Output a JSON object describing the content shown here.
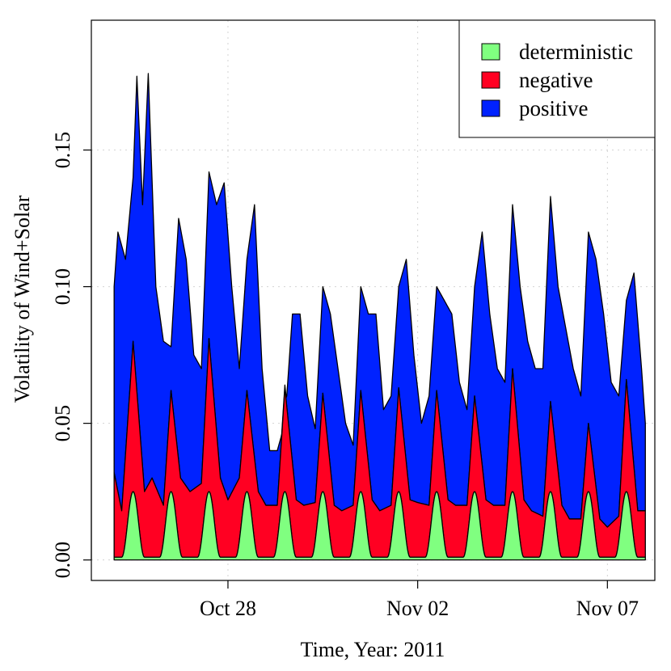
{
  "chart_data": {
    "type": "area",
    "stacked": true,
    "title": "",
    "xlabel": "Time, Year: 2011",
    "ylabel": "Volatility of Wind+Solar",
    "x_unit": "days since Oct 25 2011 00:00",
    "xlim": [
      -0.6,
      14.25
    ],
    "ylim": [
      -0.0075,
      0.1975
    ],
    "x_ticks": [
      {
        "value": 3.0,
        "label": "Oct 28"
      },
      {
        "value": 8.0,
        "label": "Nov 02"
      },
      {
        "value": 13.0,
        "label": "Nov 07"
      }
    ],
    "y_ticks": [
      {
        "value": 0.0,
        "label": "0.00"
      },
      {
        "value": 0.05,
        "label": "0.05"
      },
      {
        "value": 0.1,
        "label": "0.10"
      },
      {
        "value": 0.15,
        "label": "0.15"
      }
    ],
    "grid": true,
    "legend_position": "top-right",
    "series": [
      {
        "name": "deterministic",
        "color": "#80ff80",
        "peak_days": [
          0.5,
          1.5,
          2.5,
          3.5,
          4.5,
          5.5,
          6.5,
          7.5,
          8.5,
          9.5,
          10.5,
          11.5,
          12.5,
          13.5
        ],
        "base": 0.001,
        "peak": 0.025,
        "x": [
          0.0,
          1.0,
          2.0,
          3.0,
          4.0,
          5.0,
          6.0,
          7.0,
          8.0,
          9.0,
          10.0,
          11.0,
          12.0,
          13.0,
          14.0
        ],
        "values": [
          0.001,
          0.001,
          0.001,
          0.001,
          0.001,
          0.001,
          0.001,
          0.001,
          0.001,
          0.001,
          0.001,
          0.001,
          0.001,
          0.001,
          0.001
        ]
      },
      {
        "name": "negative",
        "color": "#ff0022",
        "x": [
          0.0,
          0.2,
          0.5,
          0.8,
          1.0,
          1.3,
          1.5,
          1.75,
          2.0,
          2.3,
          2.5,
          2.8,
          3.0,
          3.3,
          3.5,
          3.8,
          4.0,
          4.3,
          4.5,
          4.8,
          5.0,
          5.3,
          5.5,
          5.8,
          6.0,
          6.3,
          6.5,
          6.8,
          7.0,
          7.3,
          7.5,
          7.8,
          8.0,
          8.3,
          8.5,
          8.8,
          9.0,
          9.3,
          9.5,
          9.8,
          10.0,
          10.3,
          10.5,
          10.8,
          11.0,
          11.3,
          11.5,
          11.8,
          12.0,
          12.3,
          12.5,
          12.8,
          13.0,
          13.3,
          13.5,
          13.8,
          14.0
        ],
        "values": [
          0.032,
          0.018,
          0.08,
          0.025,
          0.03,
          0.02,
          0.062,
          0.03,
          0.025,
          0.028,
          0.081,
          0.03,
          0.022,
          0.03,
          0.062,
          0.025,
          0.02,
          0.02,
          0.063,
          0.022,
          0.02,
          0.021,
          0.061,
          0.02,
          0.018,
          0.02,
          0.062,
          0.022,
          0.018,
          0.02,
          0.063,
          0.022,
          0.021,
          0.02,
          0.062,
          0.022,
          0.02,
          0.02,
          0.06,
          0.022,
          0.02,
          0.02,
          0.07,
          0.022,
          0.018,
          0.016,
          0.058,
          0.02,
          0.015,
          0.015,
          0.05,
          0.015,
          0.012,
          0.016,
          0.066,
          0.018,
          0.018
        ]
      },
      {
        "name": "positive",
        "color": "#0022ff",
        "x": [
          0.0,
          0.1,
          0.3,
          0.5,
          0.6,
          0.75,
          0.9,
          1.1,
          1.3,
          1.5,
          1.7,
          1.9,
          2.1,
          2.3,
          2.5,
          2.7,
          2.9,
          3.1,
          3.3,
          3.5,
          3.7,
          3.9,
          4.1,
          4.3,
          4.5,
          4.7,
          4.9,
          5.1,
          5.3,
          5.5,
          5.7,
          5.9,
          6.1,
          6.3,
          6.5,
          6.7,
          6.9,
          7.1,
          7.3,
          7.5,
          7.7,
          7.9,
          8.1,
          8.3,
          8.5,
          8.7,
          8.9,
          9.1,
          9.3,
          9.5,
          9.7,
          9.9,
          10.1,
          10.3,
          10.5,
          10.7,
          10.9,
          11.1,
          11.3,
          11.5,
          11.7,
          11.9,
          12.1,
          12.3,
          12.5,
          12.7,
          12.9,
          13.1,
          13.3,
          13.5,
          13.7,
          13.9,
          14.0
        ],
        "values": [
          0.1,
          0.12,
          0.11,
          0.14,
          0.177,
          0.13,
          0.178,
          0.1,
          0.08,
          0.078,
          0.125,
          0.11,
          0.075,
          0.07,
          0.142,
          0.13,
          0.138,
          0.1,
          0.07,
          0.11,
          0.13,
          0.07,
          0.04,
          0.04,
          0.05,
          0.09,
          0.09,
          0.06,
          0.048,
          0.1,
          0.09,
          0.07,
          0.05,
          0.042,
          0.1,
          0.09,
          0.09,
          0.055,
          0.06,
          0.1,
          0.11,
          0.075,
          0.05,
          0.06,
          0.1,
          0.095,
          0.09,
          0.065,
          0.055,
          0.1,
          0.12,
          0.09,
          0.07,
          0.065,
          0.13,
          0.1,
          0.08,
          0.07,
          0.07,
          0.133,
          0.1,
          0.085,
          0.07,
          0.06,
          0.12,
          0.11,
          0.09,
          0.065,
          0.06,
          0.095,
          0.105,
          0.07,
          0.05
        ]
      }
    ]
  }
}
